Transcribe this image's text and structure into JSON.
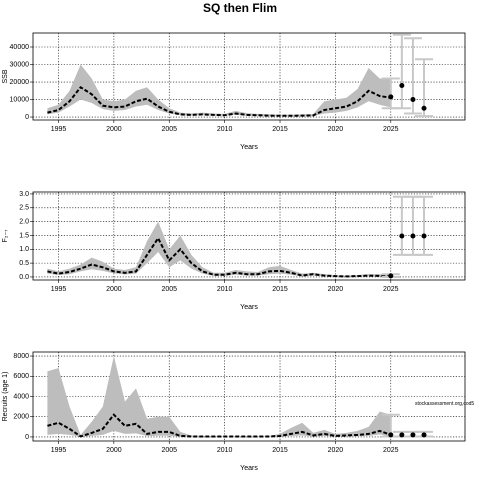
{
  "title": "SQ then Flim",
  "chart_data": [
    {
      "type": "line",
      "ylabel": "SSB",
      "xlabel": "Years",
      "grid": true,
      "color": "#000000",
      "band_color": "#bdbdbd",
      "interval_color": "#c8c8c8",
      "x": [
        1994,
        1995,
        1996,
        1997,
        1998,
        1999,
        2000,
        2001,
        2002,
        2003,
        2004,
        2005,
        2006,
        2007,
        2008,
        2009,
        2010,
        2011,
        2012,
        2013,
        2014,
        2015,
        2016,
        2017,
        2018,
        2019,
        2020,
        2021,
        2022,
        2023,
        2024,
        2025
      ],
      "values": [
        2500,
        4000,
        9000,
        17000,
        13000,
        6500,
        5500,
        6000,
        9000,
        10500,
        6000,
        3000,
        1500,
        1200,
        1500,
        1200,
        1000,
        2000,
        1200,
        1000,
        800,
        700,
        700,
        800,
        900,
        4000,
        5000,
        6000,
        9000,
        15000,
        12000,
        11000
      ],
      "low": [
        1500,
        2500,
        6000,
        10000,
        8000,
        4500,
        3500,
        4000,
        6000,
        7000,
        4000,
        2000,
        1000,
        800,
        1000,
        800,
        700,
        1300,
        800,
        700,
        500,
        400,
        400,
        500,
        500,
        2000,
        2500,
        3500,
        5500,
        9000,
        7000,
        5500
      ],
      "high": [
        5000,
        7000,
        15000,
        30000,
        22000,
        10000,
        9000,
        10000,
        15000,
        17000,
        10000,
        5000,
        2500,
        2000,
        2500,
        2000,
        1800,
        3500,
        2200,
        1800,
        1500,
        1300,
        1300,
        1500,
        1700,
        9000,
        10000,
        11000,
        16000,
        28000,
        22000,
        22000
      ],
      "forecast": {
        "x": [
          2025,
          2026,
          2027,
          2028
        ],
        "values": [
          11500,
          18000,
          10000,
          5000
        ],
        "low": [
          5000,
          5000,
          2000,
          500
        ],
        "high": [
          22000,
          47000,
          45000,
          33000
        ]
      },
      "xlim": [
        1992.7,
        2031.7
      ],
      "ylim": [
        -1700,
        48000
      ],
      "xticks": [
        1995,
        2000,
        2005,
        2010,
        2015,
        2020,
        2025
      ],
      "yticks": [
        0,
        10000,
        20000,
        30000,
        40000
      ]
    },
    {
      "type": "line",
      "ylabel": "F₂₋₇",
      "xlabel": "Years",
      "grid": true,
      "color": "#000000",
      "band_color": "#bdbdbd",
      "interval_color": "#c8c8c8",
      "x": [
        1994,
        1995,
        1996,
        1997,
        1998,
        1999,
        2000,
        2001,
        2002,
        2003,
        2004,
        2005,
        2006,
        2007,
        2008,
        2009,
        2010,
        2011,
        2012,
        2013,
        2014,
        2015,
        2016,
        2017,
        2018,
        2019,
        2020,
        2021,
        2022,
        2023,
        2024,
        2025
      ],
      "values": [
        0.2,
        0.12,
        0.18,
        0.3,
        0.45,
        0.35,
        0.2,
        0.15,
        0.2,
        0.8,
        1.4,
        0.6,
        1.0,
        0.5,
        0.2,
        0.08,
        0.08,
        0.15,
        0.1,
        0.1,
        0.2,
        0.22,
        0.15,
        0.05,
        0.1,
        0.05,
        0.03,
        0.02,
        0.03,
        0.05,
        0.04,
        0.03
      ],
      "low": [
        0.12,
        0.07,
        0.1,
        0.2,
        0.28,
        0.22,
        0.13,
        0.09,
        0.12,
        0.5,
        0.9,
        0.35,
        0.6,
        0.3,
        0.12,
        0.04,
        0.04,
        0.08,
        0.05,
        0.05,
        0.1,
        0.12,
        0.08,
        0.02,
        0.05,
        0.02,
        0.01,
        0.01,
        0.01,
        0.02,
        0.02,
        0.01
      ],
      "high": [
        0.3,
        0.2,
        0.3,
        0.45,
        0.7,
        0.55,
        0.3,
        0.25,
        0.35,
        1.3,
        2.0,
        1.0,
        1.5,
        0.8,
        0.35,
        0.15,
        0.15,
        0.25,
        0.2,
        0.18,
        0.35,
        0.4,
        0.25,
        0.12,
        0.15,
        0.1,
        0.06,
        0.05,
        0.07,
        0.1,
        0.1,
        0.1
      ],
      "forecast": {
        "x": [
          2025,
          2026,
          2027,
          2028
        ],
        "values": [
          0.04,
          1.48,
          1.48,
          1.48
        ],
        "low": [
          0.0,
          0.8,
          0.8,
          0.8
        ],
        "high": [
          0.1,
          2.9,
          2.9,
          2.9
        ]
      },
      "xlim": [
        1992.7,
        2031.7
      ],
      "ylim": [
        -0.11,
        3.07
      ],
      "xticks": [
        1995,
        2000,
        2005,
        2010,
        2015,
        2020,
        2025
      ],
      "yticks": [
        {
          "value": 0,
          "label": "0.0"
        },
        {
          "value": 0.5,
          "label": "0.5"
        },
        {
          "value": 1,
          "label": "1.0"
        },
        {
          "value": 1.5,
          "label": "1.5"
        },
        {
          "value": 2,
          "label": "2.0"
        },
        {
          "value": 2.5,
          "label": "2.5"
        },
        {
          "value": 3,
          "label": "3.0"
        }
      ]
    },
    {
      "type": "line",
      "ylabel": "Recruits (age 1)",
      "xlabel": "Years",
      "grid": true,
      "color": "#000000",
      "band_color": "#bdbdbd",
      "interval_color": "#c8c8c8",
      "annotation": "stockassessment.org,cod5",
      "x": [
        1994,
        1995,
        1996,
        1997,
        1998,
        1999,
        2000,
        2001,
        2002,
        2003,
        2004,
        2005,
        2006,
        2007,
        2008,
        2009,
        2010,
        2011,
        2012,
        2013,
        2014,
        2015,
        2016,
        2017,
        2018,
        2019,
        2020,
        2021,
        2022,
        2023,
        2024,
        2025
      ],
      "values": [
        1100,
        1400,
        800,
        50,
        400,
        800,
        2200,
        1100,
        1300,
        300,
        500,
        500,
        100,
        50,
        50,
        50,
        40,
        40,
        40,
        40,
        50,
        100,
        300,
        500,
        150,
        300,
        100,
        150,
        200,
        300,
        600,
        200
      ],
      "low": [
        200,
        300,
        200,
        10,
        100,
        200,
        600,
        300,
        350,
        80,
        120,
        120,
        30,
        15,
        20,
        20,
        15,
        15,
        15,
        15,
        20,
        40,
        100,
        150,
        50,
        100,
        40,
        60,
        80,
        100,
        250,
        50
      ],
      "high": [
        6500,
        6800,
        3000,
        200,
        1500,
        3000,
        8000,
        3500,
        4800,
        1800,
        2000,
        2000,
        500,
        150,
        100,
        100,
        80,
        80,
        80,
        80,
        100,
        300,
        900,
        1400,
        400,
        700,
        300,
        400,
        600,
        1000,
        2500,
        2200
      ],
      "forecast": {
        "x": [
          2025,
          2026,
          2027,
          2028
        ],
        "values": [
          200,
          200,
          200,
          200
        ],
        "low": [
          50,
          50,
          50,
          50
        ],
        "high": [
          2200,
          500,
          500,
          500
        ]
      },
      "xlim": [
        1992.7,
        2031.7
      ],
      "ylim": [
        -400,
        8400
      ],
      "xticks": [
        1995,
        2000,
        2005,
        2010,
        2015,
        2020,
        2025
      ],
      "yticks": [
        0,
        2000,
        4000,
        6000,
        8000
      ]
    }
  ]
}
